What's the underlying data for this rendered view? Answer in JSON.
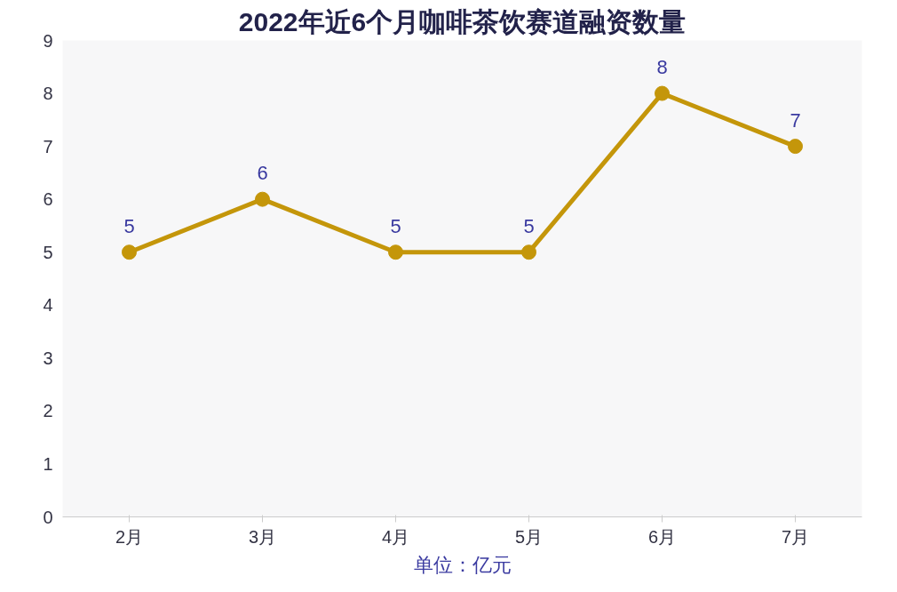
{
  "chart_data": {
    "type": "line",
    "title": "2022年近6个月咖啡茶饮赛道融资数量",
    "xlabel": "单位：亿元",
    "categories": [
      "2月",
      "3月",
      "4月",
      "5月",
      "6月",
      "7月"
    ],
    "series": [
      {
        "color": "#c4960a",
        "values": [
          5,
          6,
          5,
          5,
          8,
          7
        ]
      }
    ],
    "ylim": [
      0,
      9
    ],
    "yticks": [
      0,
      1,
      2,
      3,
      4,
      5,
      6,
      7,
      8,
      9
    ],
    "grid": false,
    "marker": "circle",
    "line_style": "solid",
    "data_labels": true
  }
}
